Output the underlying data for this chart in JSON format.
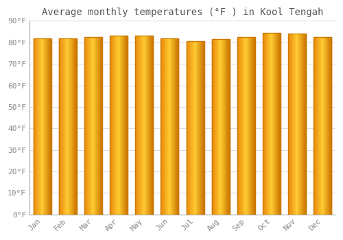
{
  "title": "Average monthly temperatures (°F ) in Kool Tengah",
  "months": [
    "Jan",
    "Feb",
    "Mar",
    "Apr",
    "May",
    "Jun",
    "Jul",
    "Aug",
    "Sep",
    "Oct",
    "Nov",
    "Dec"
  ],
  "values": [
    82,
    82,
    82.5,
    83,
    83,
    82,
    80.5,
    81.5,
    82.5,
    84.5,
    84,
    82.5
  ],
  "bar_color_left": "#E8870A",
  "bar_color_center": "#FFCC33",
  "bar_color_right": "#CC7700",
  "background_color": "#FFFFFF",
  "plot_bg_color": "#FFFFFF",
  "ylim": [
    0,
    90
  ],
  "yticks": [
    0,
    10,
    20,
    30,
    40,
    50,
    60,
    70,
    80,
    90
  ],
  "ylabel_format": "°F",
  "grid_color": "#DDDDDD",
  "title_fontsize": 10,
  "tick_fontsize": 8,
  "tick_color": "#888888",
  "title_color": "#555555"
}
